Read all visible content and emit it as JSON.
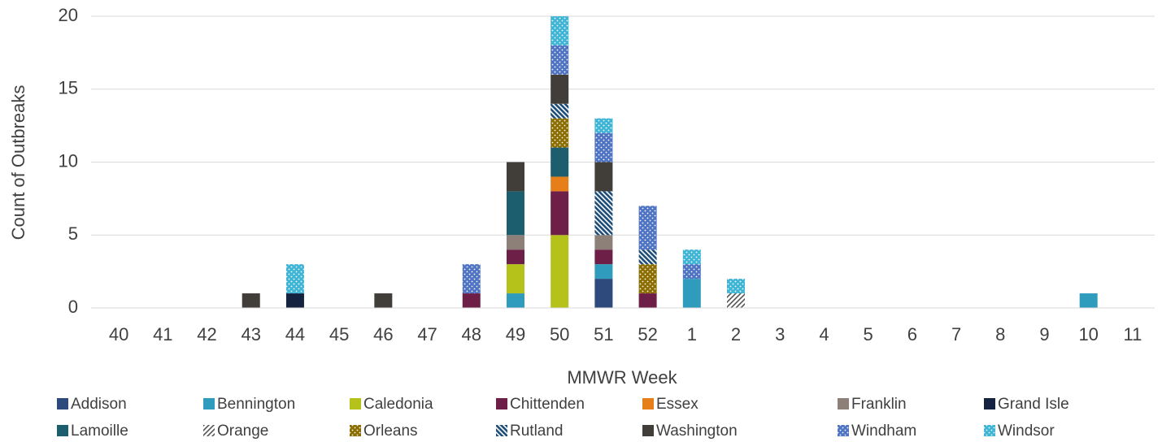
{
  "chart_data": {
    "type": "stacked-bar",
    "x_label": "MMWR Week",
    "y_label": "Count of Outbreaks",
    "categories": [
      "40",
      "41",
      "42",
      "43",
      "44",
      "45",
      "46",
      "47",
      "48",
      "49",
      "50",
      "51",
      "52",
      "1",
      "2",
      "3",
      "4",
      "5",
      "6",
      "7",
      "8",
      "9",
      "10",
      "11"
    ],
    "ylim": [
      0,
      20
    ],
    "yticks": [
      0,
      5,
      10,
      15,
      20
    ],
    "grid": true,
    "legend": "bottom",
    "series": [
      {
        "name": "Addison",
        "color": "#2e4a7d",
        "values": [
          0,
          0,
          0,
          0,
          0,
          0,
          0,
          0,
          0,
          0,
          0,
          2,
          0,
          0,
          0,
          0,
          0,
          0,
          0,
          0,
          0,
          0,
          0,
          0
        ]
      },
      {
        "name": "Bennington",
        "color": "#2f9bbd",
        "values": [
          0,
          0,
          0,
          0,
          0,
          0,
          0,
          0,
          0,
          1,
          0,
          1,
          0,
          2,
          0,
          0,
          0,
          0,
          0,
          0,
          0,
          0,
          1,
          0
        ]
      },
      {
        "name": "Caledonia",
        "color": "#b5c21a",
        "values": [
          0,
          0,
          0,
          0,
          0,
          0,
          0,
          0,
          0,
          2,
          5,
          0,
          0,
          0,
          0,
          0,
          0,
          0,
          0,
          0,
          0,
          0,
          0,
          0
        ]
      },
      {
        "name": "Chittenden",
        "color": "#6e1f47",
        "values": [
          0,
          0,
          0,
          0,
          0,
          0,
          0,
          0,
          1,
          1,
          3,
          1,
          1,
          0,
          0,
          0,
          0,
          0,
          0,
          0,
          0,
          0,
          0,
          0
        ]
      },
      {
        "name": "Essex",
        "color": "#e67e1a",
        "values": [
          0,
          0,
          0,
          0,
          0,
          0,
          0,
          0,
          0,
          0,
          1,
          0,
          0,
          0,
          0,
          0,
          0,
          0,
          0,
          0,
          0,
          0,
          0,
          0
        ]
      },
      {
        "name": "Franklin",
        "color": "#8c8079",
        "values": [
          0,
          0,
          0,
          0,
          0,
          0,
          0,
          0,
          0,
          1,
          0,
          1,
          0,
          0,
          0,
          0,
          0,
          0,
          0,
          0,
          0,
          0,
          0,
          0
        ]
      },
      {
        "name": "Grand Isle",
        "color": "#152340",
        "values": [
          0,
          0,
          0,
          0,
          1,
          0,
          0,
          0,
          0,
          0,
          0,
          0,
          0,
          0,
          0,
          0,
          0,
          0,
          0,
          0,
          0,
          0,
          0,
          0
        ]
      },
      {
        "name": "Lamoille",
        "color": "#1d5e6e",
        "values": [
          0,
          0,
          0,
          0,
          0,
          0,
          0,
          0,
          0,
          3,
          2,
          0,
          0,
          0,
          0,
          0,
          0,
          0,
          0,
          0,
          0,
          0,
          0,
          0
        ]
      },
      {
        "name": "Orange",
        "color": "#555555",
        "pattern": "hatch",
        "values": [
          0,
          0,
          0,
          0,
          0,
          0,
          0,
          0,
          0,
          0,
          0,
          0,
          0,
          0,
          1,
          0,
          0,
          0,
          0,
          0,
          0,
          0,
          0,
          0
        ]
      },
      {
        "name": "Orleans",
        "color": "#8c6d00",
        "pattern": "dots",
        "values": [
          0,
          0,
          0,
          0,
          0,
          0,
          0,
          0,
          0,
          0,
          2,
          0,
          2,
          0,
          0,
          0,
          0,
          0,
          0,
          0,
          0,
          0,
          0,
          0
        ]
      },
      {
        "name": "Rutland",
        "color": "#1f4e79",
        "pattern": "stripes",
        "values": [
          0,
          0,
          0,
          0,
          0,
          0,
          0,
          0,
          0,
          0,
          1,
          3,
          1,
          0,
          0,
          0,
          0,
          0,
          0,
          0,
          0,
          0,
          0,
          0
        ]
      },
      {
        "name": "Washington",
        "color": "#413d39",
        "values": [
          0,
          0,
          0,
          1,
          0,
          0,
          1,
          0,
          0,
          2,
          2,
          2,
          0,
          0,
          0,
          0,
          0,
          0,
          0,
          0,
          0,
          0,
          0,
          0
        ]
      },
      {
        "name": "Windham",
        "color": "#4f74c4",
        "pattern": "dots",
        "values": [
          0,
          0,
          0,
          0,
          0,
          0,
          0,
          0,
          2,
          0,
          2,
          2,
          3,
          1,
          0,
          0,
          0,
          0,
          0,
          0,
          0,
          0,
          0,
          0
        ]
      },
      {
        "name": "Windsor",
        "color": "#3fb5d6",
        "pattern": "dots",
        "values": [
          0,
          0,
          0,
          0,
          2,
          0,
          0,
          0,
          0,
          0,
          2,
          1,
          0,
          1,
          1,
          0,
          0,
          0,
          0,
          0,
          0,
          0,
          0,
          0
        ]
      }
    ]
  }
}
